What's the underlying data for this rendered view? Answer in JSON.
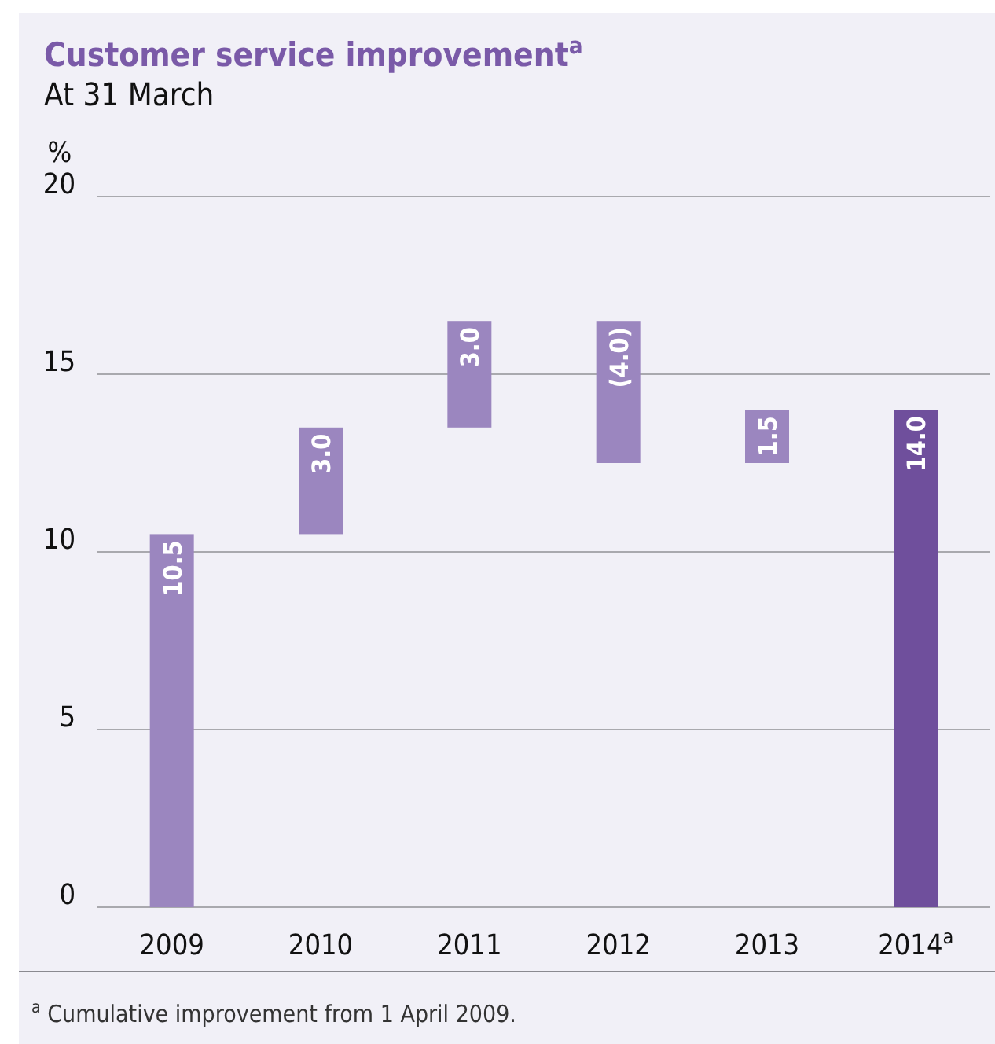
{
  "chart_data": {
    "type": "bar",
    "title": "Customer service improvement$^{a}$",
    "subtitle": "At 31 March",
    "ylabel": "%",
    "categories": [
      "2009",
      "2010",
      "2011",
      "2012",
      "2013",
      "2014$^{a}$"
    ],
    "values": [
      10.5,
      3.0,
      3.0,
      -4.0,
      1.5,
      14.0
    ],
    "base": [
      0,
      10.5,
      13.5,
      16.5,
      12.5,
      0
    ],
    "colors": [
      "#9b86bf",
      "#9b86bf",
      "#9b86bf",
      "#9b86bf",
      "#9b86bf",
      "#6f4f9c"
    ],
    "value_labels": [
      "10.5",
      "3.0",
      "3.0",
      "(4.0)",
      "1.5",
      "14.0"
    ],
    "ylim": [
      0,
      20
    ],
    "yticks": [
      0,
      5,
      10,
      15,
      20
    ],
    "grid": "y",
    "annotations": [
      "$^{a}$ Cumulative improvement from 1 April 2009."
    ]
  }
}
